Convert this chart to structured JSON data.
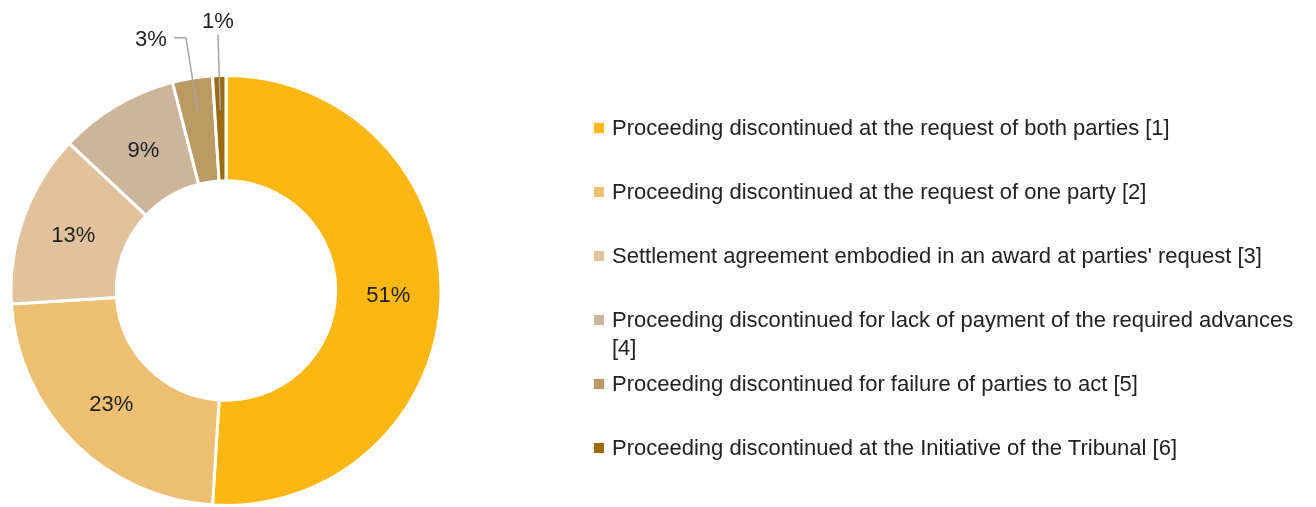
{
  "chart_data": {
    "type": "donut",
    "categories": [
      "Proceeding discontinued at the request of both parties [1]",
      "Proceeding discontinued at the request of one party [2]",
      "Settlement agreement embodied in an award at parties' request [3]",
      "Proceeding discontinued for lack of payment of the required advances [4]",
      "Proceeding discontinued for failure of parties to act [5]",
      "Proceeding discontinued at the Initiative of the Tribunal [6]"
    ],
    "values": [
      51,
      23,
      13,
      9,
      3,
      1
    ],
    "value_labels": [
      "51%",
      "23%",
      "13%",
      "9%",
      "3%",
      "1%"
    ],
    "colors": [
      "#fbb714",
      "#ecbf72",
      "#e0c39c",
      "#cbb69c",
      "#bc9a63",
      "#9c6b10"
    ],
    "legend": "right"
  }
}
